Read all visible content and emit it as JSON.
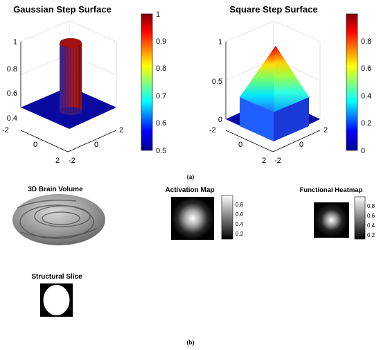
{
  "captions": {
    "a": "(a)",
    "b": "(b)"
  },
  "colormaps": {
    "jet": [
      "#00008f",
      "#0000ff",
      "#00ffff",
      "#ffff00",
      "#ff0000",
      "#800000"
    ]
  },
  "chart_data": [
    {
      "type": "surface",
      "title": "Gaussian Step Surface",
      "x_ticks": [
        "-2",
        "0",
        "2"
      ],
      "y_ticks": [
        "-2",
        "0",
        "2"
      ],
      "z_ticks": [
        "0.4",
        "0.6",
        "0.8",
        "1"
      ],
      "zlim": [
        0.4,
        1
      ],
      "plateau_value": 0.5,
      "peak_value": 1,
      "colorbar": {
        "colormap": "jet",
        "range": [
          0.5,
          1
        ],
        "ticks": [
          "0.5",
          "0.6",
          "0.7",
          "0.8",
          "0.9",
          "1"
        ]
      }
    },
    {
      "type": "surface",
      "title": "Square Step Surface",
      "x_ticks": [
        "-2",
        "0",
        "2"
      ],
      "y_ticks": [
        "-2",
        "0",
        "2"
      ],
      "z_ticks": [
        "0",
        "0.5",
        "1"
      ],
      "zlim": [
        0,
        1
      ],
      "plateau_value": 0,
      "step_value": 0.2,
      "peak_value": 1,
      "colorbar": {
        "colormap": "jet",
        "range": [
          0,
          1
        ],
        "ticks": [
          "0",
          "0.2",
          "0.4",
          "0.6",
          "0.8"
        ]
      }
    },
    {
      "type": "volume",
      "title": "3D Brain Volume"
    },
    {
      "type": "heatmap",
      "title": "Activation Map",
      "colormap": "gray",
      "colorbar": {
        "range": [
          0.1,
          0.9
        ],
        "ticks": [
          "0.8",
          "0.6",
          "0.4",
          "0.2"
        ]
      }
    },
    {
      "type": "heatmap",
      "title": "Functional Heatmap",
      "colormap": "gray",
      "colorbar": {
        "range": [
          0.1,
          0.9
        ],
        "ticks": [
          "0.8",
          "0.6",
          "0.4",
          "0.2"
        ]
      }
    },
    {
      "type": "heatmap",
      "title": "Structural Slice",
      "colormap": "binary"
    }
  ]
}
